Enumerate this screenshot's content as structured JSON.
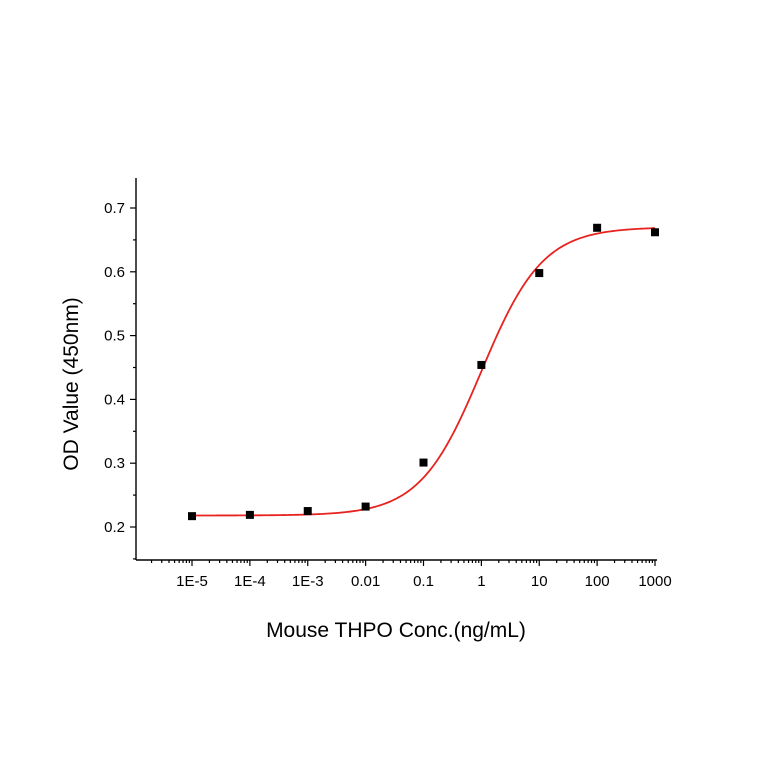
{
  "chart_data": {
    "type": "scatter",
    "title": "",
    "xlabel": "Mouse THPO Conc.(ng/mL)",
    "ylabel": "OD Value (450nm)",
    "x_scale": "log",
    "xlim": [
      3.5e-06,
      1000
    ],
    "ylim": [
      0.15,
      0.75
    ],
    "grid": false,
    "x_ticks": [
      {
        "value": 1e-05,
        "label": "1E-5"
      },
      {
        "value": 0.0001,
        "label": "1E-4"
      },
      {
        "value": 0.001,
        "label": "1E-3"
      },
      {
        "value": 0.01,
        "label": "0.01"
      },
      {
        "value": 0.1,
        "label": "0.1"
      },
      {
        "value": 1,
        "label": "1"
      },
      {
        "value": 10,
        "label": "10"
      },
      {
        "value": 100,
        "label": "100"
      },
      {
        "value": 1000,
        "label": "1000"
      }
    ],
    "y_ticks": [
      {
        "value": 0.2,
        "label": "0.2"
      },
      {
        "value": 0.3,
        "label": "0.3"
      },
      {
        "value": 0.4,
        "label": "0.4"
      },
      {
        "value": 0.5,
        "label": "0.5"
      },
      {
        "value": 0.6,
        "label": "0.6"
      },
      {
        "value": 0.7,
        "label": "0.7"
      }
    ],
    "series": [
      {
        "marker": "square",
        "color": "#000000",
        "x": [
          1e-05,
          0.0001,
          0.001,
          0.01,
          0.1,
          1,
          10,
          100,
          1000
        ],
        "y": [
          0.217,
          0.219,
          0.225,
          0.232,
          0.301,
          0.454,
          0.598,
          0.669,
          0.662
        ]
      }
    ],
    "fit_curve": {
      "type": "4PL",
      "color": "#e8231f",
      "bottom": 0.218,
      "top": 0.67,
      "ec50": 1.0,
      "hill": 0.82
    }
  }
}
